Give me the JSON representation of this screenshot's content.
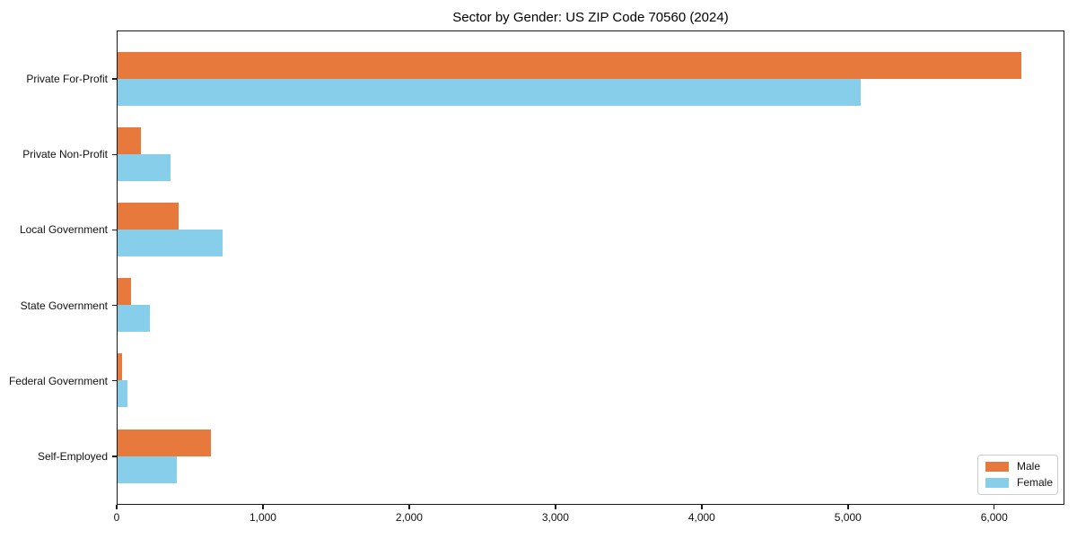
{
  "title": "Sector by Gender: US ZIP Code 70560 (2024)",
  "chart_data": {
    "type": "bar",
    "orientation": "horizontal",
    "title": "Sector by Gender: US ZIP Code 70560 (2024)",
    "categories": [
      "Private For-Profit",
      "Private Non-Profit",
      "Local Government",
      "State Government",
      "Federal Government",
      "Self-Employed"
    ],
    "series": [
      {
        "name": "Male",
        "color": "#e8793d",
        "values": [
          6180,
          160,
          415,
          95,
          30,
          640
        ]
      },
      {
        "name": "Female",
        "color": "#87ceeb",
        "values": [
          5080,
          365,
          715,
          220,
          70,
          405
        ]
      }
    ],
    "xlabel": "",
    "ylabel": "",
    "xlim": [
      0,
      6480
    ],
    "xticks": [
      0,
      1000,
      2000,
      3000,
      4000,
      5000,
      6000
    ],
    "xtick_labels": [
      "0",
      "1,000",
      "2,000",
      "3,000",
      "4,000",
      "5,000",
      "6,000"
    ],
    "grid": false,
    "legend": {
      "position": "lower right",
      "items": [
        "Male",
        "Female"
      ]
    }
  }
}
